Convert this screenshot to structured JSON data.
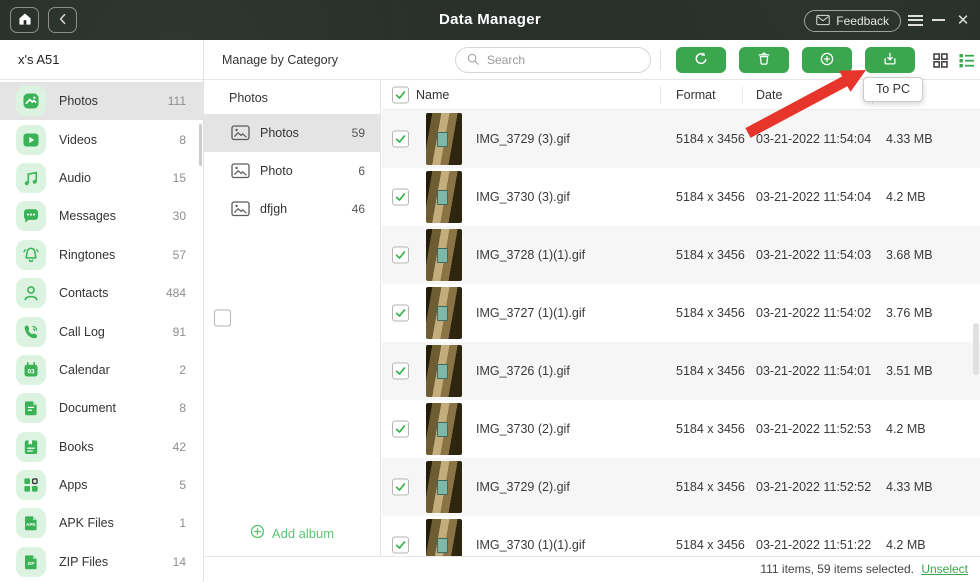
{
  "titlebar": {
    "title": "Data Manager",
    "feedback_label": "Feedback"
  },
  "sidebar": {
    "device_name": "x's A51",
    "items": [
      {
        "icon": "photos-icon",
        "label": "Photos",
        "count": "111",
        "selected": true
      },
      {
        "icon": "videos-icon",
        "label": "Videos",
        "count": "8",
        "selected": false
      },
      {
        "icon": "audio-icon",
        "label": "Audio",
        "count": "15",
        "selected": false
      },
      {
        "icon": "messages-icon",
        "label": "Messages",
        "count": "30",
        "selected": false
      },
      {
        "icon": "ringtones-icon",
        "label": "Ringtones",
        "count": "57",
        "selected": false
      },
      {
        "icon": "contacts-icon",
        "label": "Contacts",
        "count": "484",
        "selected": false
      },
      {
        "icon": "call-log-icon",
        "label": "Call Log",
        "count": "91",
        "selected": false
      },
      {
        "icon": "calendar-icon",
        "label": "Calendar",
        "count": "2",
        "selected": false
      },
      {
        "icon": "document-icon",
        "label": "Document",
        "count": "8",
        "selected": false
      },
      {
        "icon": "books-icon",
        "label": "Books",
        "count": "42",
        "selected": false
      },
      {
        "icon": "apps-icon",
        "label": "Apps",
        "count": "5",
        "selected": false
      },
      {
        "icon": "apk-files-icon",
        "label": "APK Files",
        "count": "1",
        "selected": false
      },
      {
        "icon": "zip-files-icon",
        "label": "ZIP Files",
        "count": "14",
        "selected": false
      }
    ]
  },
  "album_panel": {
    "header": "Manage by Category",
    "parent": {
      "label": "Photos",
      "checkbox": "indeterminate"
    },
    "albums": [
      {
        "label": "Photos",
        "count": "59",
        "checked": true,
        "selected": true
      },
      {
        "label": "Photo",
        "count": "6",
        "checked": false,
        "selected": false
      },
      {
        "label": "dfjgh",
        "count": "46",
        "checked": false,
        "selected": false
      }
    ],
    "add_album_label": "Add album"
  },
  "toolbar": {
    "search_placeholder": "Search",
    "buttons": [
      {
        "icon": "refresh-icon"
      },
      {
        "icon": "delete-icon"
      },
      {
        "icon": "add-icon"
      },
      {
        "icon": "download-to-pc-icon"
      }
    ],
    "tooltip": "To PC"
  },
  "table": {
    "columns": {
      "name": "Name",
      "format": "Format",
      "date": "Date"
    },
    "header_checked": true,
    "rows": [
      {
        "name": "IMG_3729 (3).gif",
        "format": "5184 x 3456",
        "date": "03-21-2022 11:54:04",
        "size": "4.33 MB",
        "checked": true
      },
      {
        "name": "IMG_3730 (3).gif",
        "format": "5184 x 3456",
        "date": "03-21-2022 11:54:04",
        "size": "4.2 MB",
        "checked": true
      },
      {
        "name": "IMG_3728 (1)(1).gif",
        "format": "5184 x 3456",
        "date": "03-21-2022 11:54:03",
        "size": "3.68 MB",
        "checked": true
      },
      {
        "name": "IMG_3727 (1)(1).gif",
        "format": "5184 x 3456",
        "date": "03-21-2022 11:54:02",
        "size": "3.76 MB",
        "checked": true
      },
      {
        "name": "IMG_3726 (1).gif",
        "format": "5184 x 3456",
        "date": "03-21-2022 11:54:01",
        "size": "3.51 MB",
        "checked": true
      },
      {
        "name": "IMG_3730 (2).gif",
        "format": "5184 x 3456",
        "date": "03-21-2022 11:52:53",
        "size": "4.2 MB",
        "checked": true
      },
      {
        "name": "IMG_3729 (2).gif",
        "format": "5184 x 3456",
        "date": "03-21-2022 11:52:52",
        "size": "4.33 MB",
        "checked": true
      },
      {
        "name": "IMG_3730 (1)(1).gif",
        "format": "5184 x 3456",
        "date": "03-21-2022 11:51:22",
        "size": "4.2 MB",
        "checked": true
      }
    ]
  },
  "statusbar": {
    "summary": "111 items, 59 items selected.",
    "unselect_label": "Unselect"
  },
  "colors": {
    "accent_green": "#3aa64e",
    "icon_green": "#3cb257",
    "icon_bg_green": "#dcf3e2",
    "add_album_green": "#5cc477",
    "titlebar_dark": "#262b27",
    "selected_gray": "#e4e4e4",
    "alt_row_gray": "#f6f6f6",
    "arrow_red": "#e8352b"
  }
}
